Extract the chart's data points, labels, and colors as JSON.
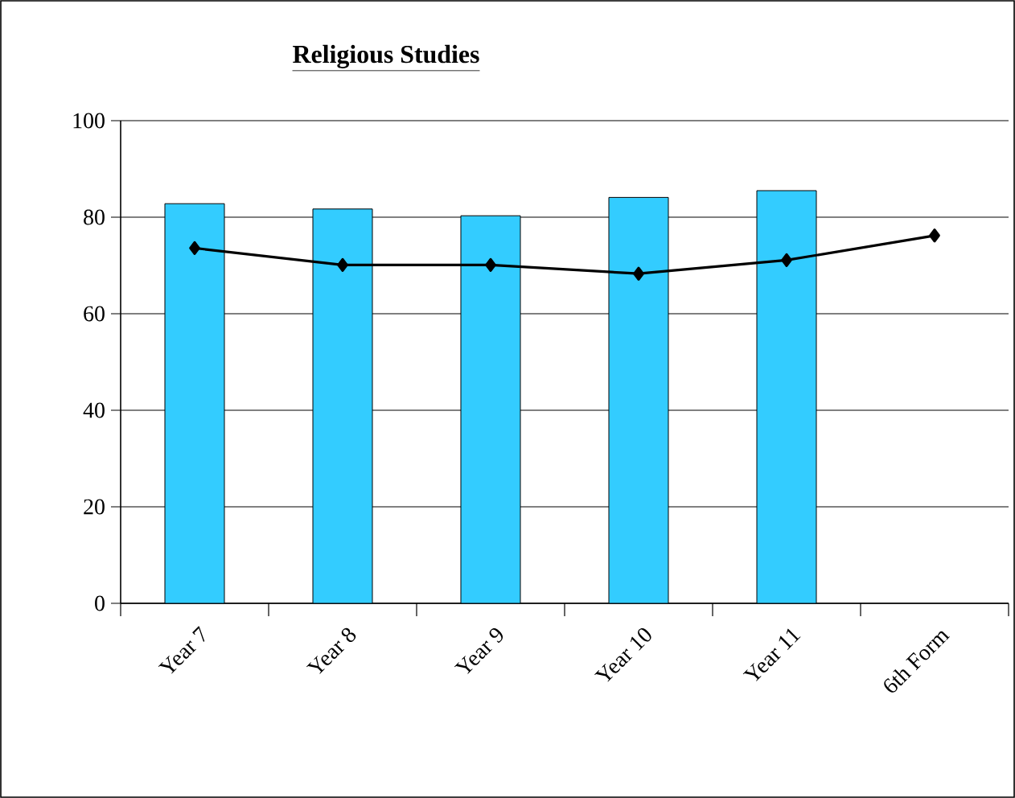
{
  "chart_data": {
    "type": "bar",
    "title": "Religious Studies",
    "categories": [
      "Year 7",
      "Year 8",
      "Year 9",
      "Year 10",
      "Year 11",
      "6th Form"
    ],
    "series": [
      {
        "color": "#33ccff",
        "values": [
          82.8,
          81.7,
          80.3,
          84.1,
          85.5,
          null
        ]
      },
      {
        "type": "line",
        "color": "#000000",
        "marker": "diamond",
        "values": [
          73.6,
          70.1,
          70.1,
          68.3,
          71.1,
          76.2
        ]
      }
    ],
    "ylim": [
      0,
      100
    ],
    "yticks": [
      0,
      20,
      40,
      60,
      80,
      100
    ],
    "grid": "y"
  }
}
